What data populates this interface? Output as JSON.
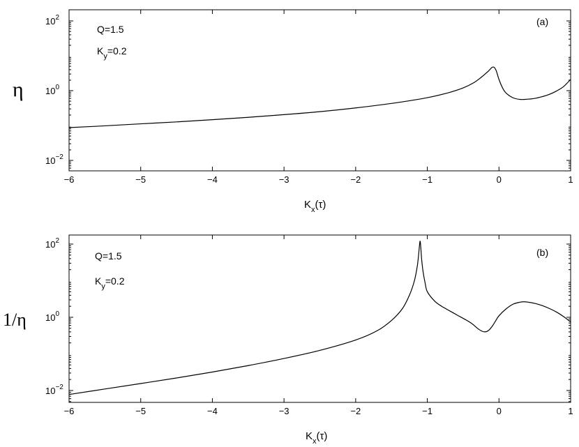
{
  "chart_data": [
    {
      "type": "line",
      "panel_label": "(a)",
      "ylabel": "η",
      "xlabel_main": "K",
      "xlabel_sub": "x",
      "xlabel_tail": "(τ)",
      "yscale": "log",
      "xlim": [
        -6,
        1
      ],
      "ylim": [
        0.005,
        200
      ],
      "x_ticks": [
        -6,
        -5,
        -4,
        -3,
        -2,
        -1,
        0,
        1
      ],
      "x_tick_labels": [
        "−6",
        "−5",
        "−4",
        "−3",
        "−2",
        "−1",
        "0",
        "1"
      ],
      "y_ticks": [
        0.01,
        1,
        100
      ],
      "y_tick_labels": [
        {
          "base": "10",
          "exp": "−2"
        },
        {
          "base": "10",
          "exp": "0"
        },
        {
          "base": "10",
          "exp": "2"
        }
      ],
      "annotations": [
        {
          "text": "Q=1.5"
        },
        {
          "main": "K",
          "sub": "y",
          "tail": "=0.2"
        }
      ],
      "series": [
        {
          "x": [
            -6,
            -5.5,
            -5,
            -4.5,
            -4,
            -3.5,
            -3,
            -2.5,
            -2,
            -1.5,
            -1,
            -0.7,
            -0.5,
            -0.35,
            -0.25,
            -0.15,
            -0.1,
            -0.07,
            -0.04,
            0,
            0.05,
            0.1,
            0.2,
            0.3,
            0.4,
            0.5,
            0.6,
            0.7,
            0.8,
            0.9,
            1.0
          ],
          "y": [
            0.087,
            0.098,
            0.112,
            0.127,
            0.147,
            0.172,
            0.205,
            0.25,
            0.32,
            0.43,
            0.63,
            0.88,
            1.2,
            1.7,
            2.4,
            3.6,
            4.6,
            4.7,
            3.8,
            2.1,
            1.2,
            0.85,
            0.62,
            0.56,
            0.57,
            0.6,
            0.67,
            0.78,
            0.97,
            1.3,
            2.1
          ]
        }
      ]
    },
    {
      "type": "line",
      "panel_label": "(b)",
      "ylabel": "1/η",
      "xlabel_main": "K",
      "xlabel_sub": "x",
      "xlabel_tail": "(τ)",
      "yscale": "log",
      "xlim": [
        -6,
        1
      ],
      "ylim": [
        0.005,
        200
      ],
      "x_ticks": [
        -6,
        -5,
        -4,
        -3,
        -2,
        -1,
        0,
        1
      ],
      "x_tick_labels": [
        "−6",
        "−5",
        "−4",
        "−3",
        "−2",
        "−1",
        "0",
        "1"
      ],
      "y_ticks": [
        0.01,
        1,
        100
      ],
      "y_tick_labels": [
        {
          "base": "10",
          "exp": "−2"
        },
        {
          "base": "10",
          "exp": "0"
        },
        {
          "base": "10",
          "exp": "2"
        }
      ],
      "annotations": [
        {
          "text": "Q=1.5"
        },
        {
          "main": "K",
          "sub": "y",
          "tail": "=0.2"
        }
      ],
      "series": [
        {
          "x": [
            -6,
            -5.5,
            -5,
            -4.5,
            -4,
            -3.5,
            -3,
            -2.5,
            -2,
            -1.7,
            -1.5,
            -1.35,
            -1.25,
            -1.18,
            -1.14,
            -1.12,
            -1.11,
            -1.1,
            -1.09,
            -1.08,
            -1.06,
            -1.03,
            -1.0,
            -0.9,
            -0.8,
            -0.6,
            -0.4,
            -0.3,
            -0.25,
            -0.2,
            -0.15,
            -0.1,
            -0.05,
            0,
            0.1,
            0.2,
            0.3,
            0.35,
            0.4,
            0.5,
            0.6,
            0.7,
            0.8,
            0.9,
            1.0
          ],
          "y": [
            0.0078,
            0.011,
            0.0155,
            0.022,
            0.032,
            0.048,
            0.075,
            0.125,
            0.24,
            0.43,
            0.82,
            1.7,
            4.0,
            10,
            25,
            55,
            90,
            120,
            75,
            40,
            18,
            8.5,
            5.0,
            2.8,
            2.0,
            1.2,
            0.72,
            0.5,
            0.43,
            0.4,
            0.43,
            0.55,
            0.78,
            1.1,
            1.7,
            2.3,
            2.6,
            2.65,
            2.6,
            2.4,
            2.1,
            1.75,
            1.4,
            1.05,
            0.75
          ]
        }
      ]
    }
  ]
}
